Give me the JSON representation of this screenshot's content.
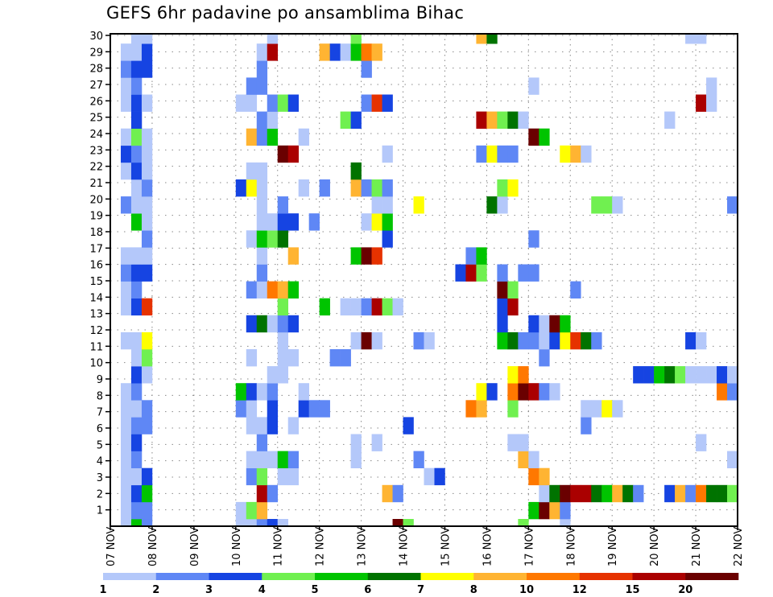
{
  "chart_data": {
    "type": "heatmap",
    "title": "GEFS 6hr padavine po ansamblima Bihac",
    "xlabel": "",
    "ylabel": "",
    "x_step_hours": 6,
    "x_steps": 60,
    "x_tick_labels": [
      "07 NOV",
      "08 NOV",
      "09 NOV",
      "10 NOV",
      "11 NOV",
      "12 NOV",
      "13 NOV",
      "14 NOV",
      "15 NOV",
      "16 NOV",
      "17 NOV",
      "18 NOV",
      "19 NOV",
      "20 NOV",
      "21 NOV",
      "22 NOV"
    ],
    "y_tick_labels": [
      "1",
      "2",
      "3",
      "4",
      "5",
      "6",
      "7",
      "8",
      "9",
      "10",
      "11",
      "12",
      "13",
      "14",
      "15",
      "16",
      "17",
      "18",
      "19",
      "20",
      "21",
      "22",
      "23",
      "24",
      "25",
      "26",
      "27",
      "28",
      "29",
      "30"
    ],
    "ylim": [
      0,
      30
    ],
    "grid": true,
    "colorbar": {
      "placement": "bottom",
      "labels": [
        "1",
        "2",
        "3",
        "4",
        "5",
        "6",
        "7",
        "8",
        "10",
        "12",
        "15",
        "20"
      ],
      "colors": [
        "#b4c8fa",
        "#5f87f5",
        "#1644e2",
        "#70f050",
        "#00c400",
        "#007300",
        "#ffff00",
        "#ffb432",
        "#ff7800",
        "#e63200",
        "#aa0000",
        "#6a0000"
      ]
    },
    "cell_format": "member -> [time_step_index, colorbar_bin_index]",
    "cells": {
      "29": [
        [
          2,
          0
        ],
        [
          3,
          0
        ],
        [
          15,
          0
        ],
        [
          23,
          3
        ],
        [
          35,
          7
        ],
        [
          36,
          5
        ],
        [
          55,
          0
        ],
        [
          56,
          0
        ]
      ],
      "28": [
        [
          1,
          0
        ],
        [
          2,
          0
        ],
        [
          3,
          2
        ],
        [
          14,
          0
        ],
        [
          15,
          10
        ],
        [
          20,
          7
        ],
        [
          21,
          2
        ],
        [
          22,
          0
        ],
        [
          23,
          4
        ],
        [
          24,
          8
        ],
        [
          25,
          7
        ]
      ],
      "27": [
        [
          1,
          1
        ],
        [
          2,
          2
        ],
        [
          3,
          2
        ],
        [
          14,
          1
        ],
        [
          24,
          1
        ]
      ],
      "26": [
        [
          1,
          0
        ],
        [
          2,
          1
        ],
        [
          13,
          1
        ],
        [
          14,
          1
        ],
        [
          40,
          0
        ],
        [
          57,
          0
        ]
      ],
      "25": [
        [
          1,
          0
        ],
        [
          2,
          2
        ],
        [
          3,
          0
        ],
        [
          12,
          0
        ],
        [
          13,
          0
        ],
        [
          15,
          1
        ],
        [
          16,
          3
        ],
        [
          17,
          2
        ],
        [
          24,
          1
        ],
        [
          25,
          9
        ],
        [
          26,
          2
        ],
        [
          56,
          10
        ],
        [
          57,
          0
        ]
      ],
      "24": [
        [
          2,
          2
        ],
        [
          14,
          1
        ],
        [
          15,
          0
        ],
        [
          22,
          3
        ],
        [
          23,
          2
        ],
        [
          35,
          10
        ],
        [
          36,
          7
        ],
        [
          37,
          3
        ],
        [
          38,
          5
        ],
        [
          39,
          0
        ],
        [
          53,
          0
        ]
      ],
      "23": [
        [
          1,
          0
        ],
        [
          2,
          3
        ],
        [
          3,
          0
        ],
        [
          13,
          7
        ],
        [
          14,
          1
        ],
        [
          15,
          4
        ],
        [
          18,
          0
        ],
        [
          40,
          11
        ],
        [
          41,
          4
        ]
      ],
      "22": [
        [
          1,
          2
        ],
        [
          2,
          1
        ],
        [
          3,
          0
        ],
        [
          16,
          11
        ],
        [
          17,
          10
        ],
        [
          26,
          0
        ],
        [
          35,
          1
        ],
        [
          36,
          6
        ],
        [
          37,
          1
        ],
        [
          38,
          1
        ],
        [
          43,
          6
        ],
        [
          44,
          7
        ],
        [
          45,
          0
        ]
      ],
      "21": [
        [
          1,
          0
        ],
        [
          2,
          2
        ],
        [
          3,
          0
        ],
        [
          13,
          0
        ],
        [
          14,
          0
        ],
        [
          23,
          5
        ]
      ],
      "20": [
        [
          2,
          0
        ],
        [
          3,
          1
        ],
        [
          12,
          2
        ],
        [
          13,
          6
        ],
        [
          14,
          0
        ],
        [
          18,
          0
        ],
        [
          20,
          1
        ],
        [
          23,
          7
        ],
        [
          24,
          1
        ],
        [
          25,
          3
        ],
        [
          26,
          1
        ],
        [
          37,
          3
        ],
        [
          38,
          6
        ]
      ],
      "19": [
        [
          1,
          1
        ],
        [
          2,
          0
        ],
        [
          3,
          0
        ],
        [
          14,
          0
        ],
        [
          16,
          1
        ],
        [
          25,
          0
        ],
        [
          26,
          0
        ],
        [
          29,
          6
        ],
        [
          36,
          5
        ],
        [
          37,
          0
        ],
        [
          46,
          3
        ],
        [
          47,
          3
        ],
        [
          48,
          0
        ],
        [
          59,
          1
        ]
      ],
      "18": [
        [
          2,
          4
        ],
        [
          3,
          0
        ],
        [
          14,
          0
        ],
        [
          15,
          0
        ],
        [
          16,
          2
        ],
        [
          17,
          2
        ],
        [
          19,
          1
        ],
        [
          24,
          0
        ],
        [
          25,
          6
        ],
        [
          26,
          4
        ]
      ],
      "17": [
        [
          3,
          1
        ],
        [
          13,
          0
        ],
        [
          14,
          4
        ],
        [
          15,
          3
        ],
        [
          16,
          5
        ],
        [
          26,
          2
        ],
        [
          40,
          1
        ]
      ],
      "16": [
        [
          1,
          0
        ],
        [
          2,
          0
        ],
        [
          3,
          0
        ],
        [
          14,
          0
        ],
        [
          17,
          7
        ],
        [
          23,
          4
        ],
        [
          24,
          11
        ],
        [
          25,
          9
        ],
        [
          34,
          1
        ],
        [
          35,
          4
        ]
      ],
      "15": [
        [
          1,
          1
        ],
        [
          2,
          2
        ],
        [
          3,
          2
        ],
        [
          14,
          1
        ],
        [
          33,
          2
        ],
        [
          34,
          10
        ],
        [
          35,
          3
        ],
        [
          37,
          1
        ],
        [
          39,
          1
        ],
        [
          40,
          1
        ]
      ],
      "14": [
        [
          1,
          0
        ],
        [
          2,
          1
        ],
        [
          13,
          1
        ],
        [
          14,
          0
        ],
        [
          15,
          8
        ],
        [
          16,
          7
        ],
        [
          17,
          4
        ],
        [
          37,
          11
        ],
        [
          38,
          3
        ],
        [
          44,
          1
        ]
      ],
      "13": [
        [
          1,
          0
        ],
        [
          2,
          2
        ],
        [
          3,
          9
        ],
        [
          16,
          3
        ],
        [
          20,
          4
        ],
        [
          22,
          0
        ],
        [
          23,
          0
        ],
        [
          24,
          1
        ],
        [
          25,
          10
        ],
        [
          26,
          3
        ],
        [
          27,
          0
        ],
        [
          37,
          2
        ],
        [
          38,
          10
        ]
      ],
      "12": [
        [
          13,
          2
        ],
        [
          14,
          5
        ],
        [
          15,
          0
        ],
        [
          16,
          1
        ],
        [
          17,
          2
        ],
        [
          37,
          2
        ],
        [
          40,
          2
        ],
        [
          41,
          0
        ],
        [
          42,
          11
        ],
        [
          43,
          4
        ]
      ],
      "11": [
        [
          1,
          0
        ],
        [
          2,
          0
        ],
        [
          3,
          6
        ],
        [
          16,
          0
        ],
        [
          23,
          0
        ],
        [
          24,
          11
        ],
        [
          25,
          0
        ],
        [
          29,
          1
        ],
        [
          30,
          0
        ],
        [
          37,
          4
        ],
        [
          38,
          5
        ],
        [
          39,
          1
        ],
        [
          40,
          1
        ],
        [
          41,
          0
        ],
        [
          42,
          2
        ],
        [
          43,
          6
        ],
        [
          44,
          9
        ],
        [
          45,
          5
        ],
        [
          46,
          1
        ],
        [
          55,
          2
        ],
        [
          56,
          0
        ]
      ],
      "10": [
        [
          2,
          0
        ],
        [
          3,
          3
        ],
        [
          13,
          0
        ],
        [
          16,
          0
        ],
        [
          17,
          0
        ],
        [
          21,
          1
        ],
        [
          22,
          1
        ],
        [
          41,
          1
        ]
      ],
      "9": [
        [
          2,
          2
        ],
        [
          3,
          0
        ],
        [
          15,
          0
        ],
        [
          16,
          0
        ],
        [
          38,
          6
        ],
        [
          39,
          8
        ],
        [
          50,
          2
        ],
        [
          51,
          2
        ],
        [
          52,
          4
        ],
        [
          53,
          5
        ],
        [
          54,
          3
        ],
        [
          55,
          0
        ],
        [
          56,
          0
        ],
        [
          57,
          0
        ],
        [
          58,
          2
        ],
        [
          59,
          0
        ]
      ],
      "8": [
        [
          1,
          0
        ],
        [
          2,
          1
        ],
        [
          12,
          4
        ],
        [
          13,
          2
        ],
        [
          14,
          0
        ],
        [
          15,
          1
        ],
        [
          18,
          0
        ],
        [
          35,
          6
        ],
        [
          36,
          2
        ],
        [
          38,
          8
        ],
        [
          39,
          11
        ],
        [
          40,
          10
        ],
        [
          41,
          1
        ],
        [
          42,
          0
        ],
        [
          58,
          8
        ],
        [
          59,
          1
        ]
      ],
      "7": [
        [
          1,
          0
        ],
        [
          2,
          0
        ],
        [
          3,
          1
        ],
        [
          12,
          1
        ],
        [
          13,
          0
        ],
        [
          15,
          2
        ],
        [
          18,
          2
        ],
        [
          19,
          1
        ],
        [
          20,
          1
        ],
        [
          34,
          8
        ],
        [
          35,
          7
        ],
        [
          38,
          3
        ],
        [
          45,
          0
        ],
        [
          46,
          0
        ],
        [
          47,
          6
        ],
        [
          48,
          0
        ]
      ],
      "6": [
        [
          1,
          0
        ],
        [
          2,
          1
        ],
        [
          3,
          1
        ],
        [
          13,
          0
        ],
        [
          14,
          0
        ],
        [
          15,
          2
        ],
        [
          17,
          0
        ],
        [
          28,
          2
        ],
        [
          45,
          1
        ]
      ],
      "5": [
        [
          1,
          0
        ],
        [
          2,
          2
        ],
        [
          14,
          1
        ],
        [
          23,
          0
        ],
        [
          25,
          0
        ],
        [
          38,
          0
        ],
        [
          39,
          0
        ],
        [
          56,
          0
        ]
      ],
      "4": [
        [
          1,
          0
        ],
        [
          2,
          1
        ],
        [
          13,
          0
        ],
        [
          14,
          0
        ],
        [
          15,
          0
        ],
        [
          16,
          4
        ],
        [
          17,
          1
        ],
        [
          23,
          0
        ],
        [
          29,
          1
        ],
        [
          39,
          7
        ],
        [
          40,
          0
        ],
        [
          59,
          0
        ]
      ],
      "3": [
        [
          1,
          0
        ],
        [
          2,
          0
        ],
        [
          3,
          2
        ],
        [
          13,
          1
        ],
        [
          14,
          3
        ],
        [
          16,
          0
        ],
        [
          17,
          0
        ],
        [
          30,
          0
        ],
        [
          31,
          2
        ],
        [
          40,
          8
        ],
        [
          41,
          7
        ]
      ],
      "2": [
        [
          1,
          0
        ],
        [
          2,
          2
        ],
        [
          3,
          4
        ],
        [
          14,
          10
        ],
        [
          15,
          1
        ],
        [
          26,
          7
        ],
        [
          27,
          1
        ],
        [
          41,
          0
        ],
        [
          42,
          5
        ],
        [
          43,
          11
        ],
        [
          44,
          10
        ],
        [
          45,
          10
        ],
        [
          46,
          5
        ],
        [
          47,
          4
        ],
        [
          48,
          7
        ],
        [
          49,
          5
        ],
        [
          50,
          1
        ],
        [
          53,
          2
        ],
        [
          54,
          7
        ],
        [
          55,
          1
        ],
        [
          56,
          8
        ],
        [
          57,
          5
        ],
        [
          58,
          5
        ],
        [
          59,
          3
        ]
      ],
      "1": [
        [
          1,
          0
        ],
        [
          2,
          1
        ],
        [
          3,
          1
        ],
        [
          12,
          0
        ],
        [
          13,
          3
        ],
        [
          14,
          7
        ],
        [
          40,
          4
        ],
        [
          41,
          11
        ],
        [
          42,
          7
        ],
        [
          43,
          1
        ]
      ],
      "0": [
        [
          1,
          0
        ],
        [
          2,
          4
        ],
        [
          3,
          1
        ],
        [
          12,
          0
        ],
        [
          13,
          0
        ],
        [
          14,
          1
        ],
        [
          15,
          2
        ],
        [
          16,
          0
        ],
        [
          27,
          11
        ],
        [
          28,
          3
        ],
        [
          39,
          3
        ],
        [
          43,
          0
        ]
      ]
    }
  }
}
